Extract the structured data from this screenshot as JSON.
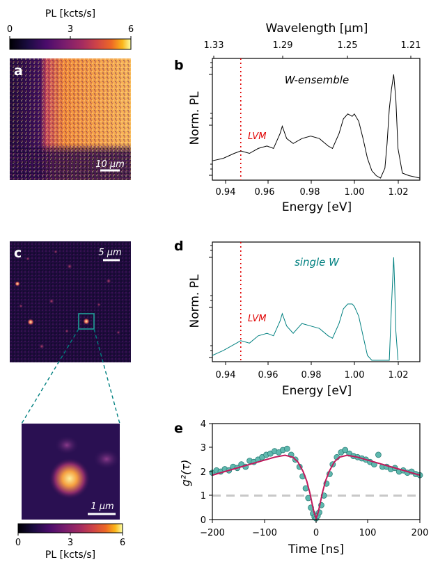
{
  "colorbar_top": {
    "label": "PL [kcts/s]",
    "ticks": [
      "0",
      "3",
      "6"
    ]
  },
  "colorbar_bottom": {
    "label": "PL [kcts/s]",
    "ticks": [
      "0",
      "3",
      "6"
    ]
  },
  "panels": {
    "a": {
      "letter": "a",
      "scalebar": "10 μm"
    },
    "c": {
      "letter": "c",
      "scalebar": "5 μm"
    },
    "zoom": {
      "scalebar": "1 μm"
    }
  },
  "chart_data": [
    {
      "panel": "b",
      "type": "line",
      "letter": "b",
      "xlabel": "Energy [eV]",
      "ylabel": "Norm. PL",
      "xlim": [
        0.935,
        1.03
      ],
      "yscale": "log",
      "xticks": [
        "0.94",
        "0.96",
        "0.98",
        "1.00",
        "1.02"
      ],
      "top_axis": {
        "label": "Wavelength [μm]",
        "ticks": [
          "1.33",
          "1.29",
          "1.25",
          "1.21"
        ]
      },
      "annotation": "W-ensemble",
      "marker_label": "LVM",
      "marker_x": 0.948,
      "series": [
        {
          "color": "#000000",
          "x": [
            0.935,
            0.94,
            0.945,
            0.948,
            0.952,
            0.956,
            0.96,
            0.963,
            0.966,
            0.967,
            0.969,
            0.972,
            0.976,
            0.98,
            0.984,
            0.988,
            0.99,
            0.993,
            0.995,
            0.997,
            0.999,
            1.0,
            1.002,
            1.004,
            1.006,
            1.008,
            1.01,
            1.012,
            1.014,
            1.015,
            1.016,
            1.017,
            1.018,
            1.019,
            1.02,
            1.022,
            1.025,
            1.03
          ],
          "y": [
            -1.75,
            -1.7,
            -1.6,
            -1.55,
            -1.6,
            -1.5,
            -1.45,
            -1.5,
            -1.2,
            -1.05,
            -1.3,
            -1.4,
            -1.3,
            -1.25,
            -1.3,
            -1.45,
            -1.5,
            -1.2,
            -0.9,
            -0.8,
            -0.85,
            -0.8,
            -0.95,
            -1.3,
            -1.7,
            -1.95,
            -2.05,
            -2.1,
            -1.9,
            -1.4,
            -0.7,
            -0.3,
            0.0,
            -0.5,
            -1.5,
            -2.0,
            -2.05,
            -2.1
          ]
        }
      ]
    },
    {
      "panel": "d",
      "type": "line",
      "letter": "d",
      "xlabel": "Energy [eV]",
      "ylabel": "Norm. PL",
      "xlim": [
        0.935,
        1.03
      ],
      "yscale": "log",
      "xticks": [
        "0.94",
        "0.96",
        "0.98",
        "1.00",
        "1.02"
      ],
      "annotation": "single W",
      "marker_label": "LVM",
      "marker_x": 0.948,
      "series": [
        {
          "color": "#008080",
          "x": [
            0.935,
            0.94,
            0.944,
            0.948,
            0.952,
            0.956,
            0.96,
            0.963,
            0.966,
            0.967,
            0.969,
            0.972,
            0.976,
            0.98,
            0.984,
            0.988,
            0.99,
            0.993,
            0.995,
            0.997,
            0.999,
            1.0,
            1.002,
            1.004,
            1.006,
            1.008,
            1.016,
            1.017,
            1.018,
            1.0185,
            1.019,
            1.02
          ],
          "y": [
            -2.0,
            -1.9,
            -1.8,
            -1.7,
            -1.75,
            -1.6,
            -1.55,
            -1.6,
            -1.3,
            -1.15,
            -1.4,
            -1.55,
            -1.35,
            -1.4,
            -1.45,
            -1.6,
            -1.65,
            -1.35,
            -1.05,
            -0.95,
            -0.95,
            -1.0,
            -1.2,
            -1.6,
            -2.0,
            -2.1,
            -2.1,
            -1.0,
            0.0,
            -0.6,
            -1.5,
            -2.1
          ]
        }
      ]
    },
    {
      "panel": "e",
      "type": "scatter",
      "letter": "e",
      "xlabel": "Time [ns]",
      "ylabel": "g²(τ)",
      "xlim": [
        -200,
        200
      ],
      "ylim": [
        0,
        4
      ],
      "xticks": [
        "−200",
        "−100",
        "0",
        "100",
        "200"
      ],
      "yticks": [
        "0",
        "1",
        "2",
        "3",
        "4"
      ],
      "reference_line": 1,
      "fit_color": "#c2185b",
      "point_color": "#5fb8ae",
      "points": {
        "x": [
          -200,
          -192,
          -184,
          -176,
          -168,
          -160,
          -152,
          -144,
          -136,
          -128,
          -120,
          -112,
          -104,
          -96,
          -88,
          -80,
          -72,
          -64,
          -56,
          -48,
          -40,
          -32,
          -26,
          -20,
          -15,
          -10,
          -6,
          -3,
          0,
          3,
          6,
          10,
          15,
          20,
          26,
          32,
          40,
          48,
          56,
          64,
          72,
          80,
          88,
          96,
          104,
          112,
          120,
          128,
          136,
          144,
          152,
          160,
          168,
          176,
          184,
          192,
          200
        ],
        "y": [
          1.95,
          2.05,
          2.0,
          2.1,
          2.05,
          2.2,
          2.15,
          2.3,
          2.2,
          2.45,
          2.4,
          2.5,
          2.6,
          2.7,
          2.75,
          2.85,
          2.8,
          2.9,
          2.95,
          2.7,
          2.5,
          2.2,
          1.8,
          1.3,
          0.9,
          0.5,
          0.25,
          0.1,
          0.05,
          0.15,
          0.3,
          0.6,
          1.0,
          1.5,
          1.9,
          2.3,
          2.6,
          2.8,
          2.9,
          2.75,
          2.65,
          2.6,
          2.55,
          2.5,
          2.4,
          2.3,
          2.7,
          2.2,
          2.2,
          2.1,
          2.15,
          2.0,
          2.05,
          1.95,
          2.0,
          1.9,
          1.85
        ]
      },
      "fit": {
        "x": [
          -200,
          -160,
          -120,
          -80,
          -60,
          -45,
          -35,
          -25,
          -18,
          -12,
          -8,
          -4,
          0,
          4,
          8,
          12,
          18,
          25,
          35,
          45,
          60,
          80,
          120,
          160,
          200
        ],
        "y": [
          1.85,
          2.1,
          2.35,
          2.6,
          2.68,
          2.6,
          2.4,
          2.0,
          1.6,
          1.1,
          0.7,
          0.3,
          0.05,
          0.3,
          0.7,
          1.1,
          1.6,
          2.0,
          2.4,
          2.6,
          2.68,
          2.6,
          2.35,
          2.1,
          1.85
        ]
      }
    }
  ]
}
